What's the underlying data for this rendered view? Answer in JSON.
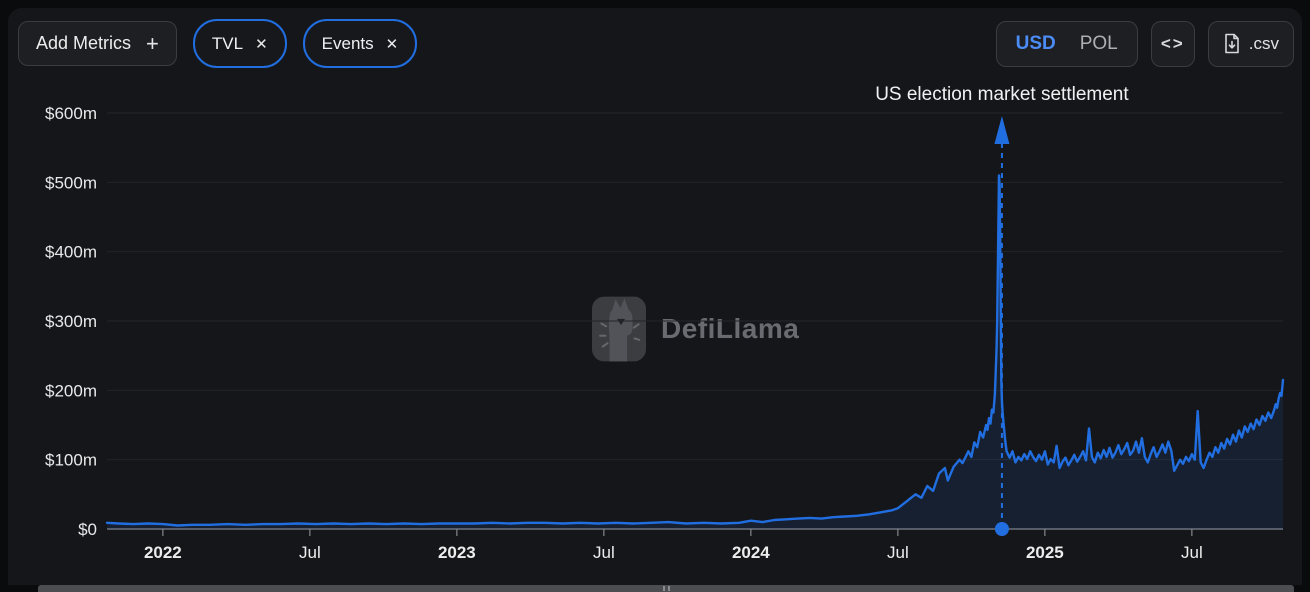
{
  "header": {
    "add_metrics_label": "Add Metrics",
    "add_metrics_plus": "+",
    "metric_pills": [
      {
        "label": "TVL",
        "close": "✕"
      },
      {
        "label": "Events",
        "close": "✕"
      }
    ],
    "currency_toggle": {
      "selected": "USD",
      "options": [
        {
          "label": "USD",
          "active": true
        },
        {
          "label": "POL",
          "active": false
        }
      ]
    },
    "embed_button_label": "<>",
    "csv_button_label": ".csv"
  },
  "watermark": {
    "brand": "DefiLlama"
  },
  "colors": {
    "accent_blue": "#216ee1",
    "usd_active_blue": "#4c8cf5",
    "panel_bg": "#15161a",
    "axis_gray": "#85878b"
  },
  "chart_data": {
    "type": "area",
    "title": "",
    "xlabel": "",
    "ylabel": "",
    "currency": "USD",
    "grid": "horizontal",
    "legend": "none",
    "line_color": "#216ee1",
    "fill_color": "rgba(33,110,225,0.12)",
    "xlim": [
      2021.81,
      2025.81
    ],
    "ylim": [
      0,
      600
    ],
    "y_ticks": [
      {
        "v": 0,
        "label": "$0"
      },
      {
        "v": 100,
        "label": "$100m"
      },
      {
        "v": 200,
        "label": "$200m"
      },
      {
        "v": 300,
        "label": "$300m"
      },
      {
        "v": 400,
        "label": "$400m"
      },
      {
        "v": 500,
        "label": "$500m"
      },
      {
        "v": 600,
        "label": "$600m"
      }
    ],
    "x_ticks": [
      {
        "t": 2022.0,
        "label": "2022",
        "bold": true
      },
      {
        "t": 2022.5,
        "label": "Jul",
        "bold": false
      },
      {
        "t": 2023.0,
        "label": "2023",
        "bold": true
      },
      {
        "t": 2023.5,
        "label": "Jul",
        "bold": false
      },
      {
        "t": 2024.0,
        "label": "2024",
        "bold": true
      },
      {
        "t": 2024.5,
        "label": "Jul",
        "bold": false
      },
      {
        "t": 2025.0,
        "label": "2025",
        "bold": true
      },
      {
        "t": 2025.5,
        "label": "Jul",
        "bold": false
      }
    ],
    "annotation": {
      "label": "US election market settlement",
      "t": 2024.854,
      "peak_value_musd": 510
    },
    "series": [
      {
        "name": "TVL",
        "unit": "USD millions",
        "points": [
          [
            2021.81,
            9
          ],
          [
            2021.85,
            8
          ],
          [
            2021.9,
            7
          ],
          [
            2021.95,
            8
          ],
          [
            2022.0,
            7
          ],
          [
            2022.05,
            5
          ],
          [
            2022.1,
            6
          ],
          [
            2022.16,
            6
          ],
          [
            2022.22,
            7
          ],
          [
            2022.28,
            6
          ],
          [
            2022.34,
            7
          ],
          [
            2022.4,
            7
          ],
          [
            2022.46,
            8
          ],
          [
            2022.52,
            7
          ],
          [
            2022.58,
            8
          ],
          [
            2022.64,
            7
          ],
          [
            2022.7,
            8
          ],
          [
            2022.76,
            7
          ],
          [
            2022.82,
            8
          ],
          [
            2022.88,
            7
          ],
          [
            2022.94,
            8
          ],
          [
            2023.0,
            8
          ],
          [
            2023.06,
            8
          ],
          [
            2023.12,
            9
          ],
          [
            2023.18,
            8
          ],
          [
            2023.24,
            9
          ],
          [
            2023.3,
            9
          ],
          [
            2023.36,
            8
          ],
          [
            2023.42,
            9
          ],
          [
            2023.48,
            8
          ],
          [
            2023.54,
            9
          ],
          [
            2023.6,
            8
          ],
          [
            2023.66,
            9
          ],
          [
            2023.72,
            10
          ],
          [
            2023.78,
            8
          ],
          [
            2023.84,
            9
          ],
          [
            2023.9,
            8
          ],
          [
            2023.96,
            9
          ],
          [
            2024.0,
            12
          ],
          [
            2024.04,
            10
          ],
          [
            2024.08,
            13
          ],
          [
            2024.12,
            14
          ],
          [
            2024.16,
            15
          ],
          [
            2024.2,
            16
          ],
          [
            2024.24,
            15
          ],
          [
            2024.28,
            17
          ],
          [
            2024.32,
            18
          ],
          [
            2024.36,
            19
          ],
          [
            2024.4,
            21
          ],
          [
            2024.44,
            24
          ],
          [
            2024.48,
            27
          ],
          [
            2024.5,
            30
          ],
          [
            2024.53,
            40
          ],
          [
            2024.56,
            50
          ],
          [
            2024.58,
            45
          ],
          [
            2024.6,
            62
          ],
          [
            2024.62,
            55
          ],
          [
            2024.64,
            80
          ],
          [
            2024.66,
            88
          ],
          [
            2024.67,
            70
          ],
          [
            2024.69,
            90
          ],
          [
            2024.71,
            100
          ],
          [
            2024.72,
            95
          ],
          [
            2024.74,
            112
          ],
          [
            2024.75,
            104
          ],
          [
            2024.76,
            125
          ],
          [
            2024.77,
            118
          ],
          [
            2024.78,
            140
          ],
          [
            2024.79,
            132
          ],
          [
            2024.8,
            150
          ],
          [
            2024.805,
            143
          ],
          [
            2024.81,
            160
          ],
          [
            2024.815,
            152
          ],
          [
            2024.82,
            172
          ],
          [
            2024.825,
            168
          ],
          [
            2024.83,
            195
          ],
          [
            2024.833,
            230
          ],
          [
            2024.836,
            262
          ],
          [
            2024.838,
            300
          ],
          [
            2024.84,
            370
          ],
          [
            2024.842,
            440
          ],
          [
            2024.844,
            510
          ],
          [
            2024.846,
            495
          ],
          [
            2024.848,
            420
          ],
          [
            2024.85,
            300
          ],
          [
            2024.852,
            215
          ],
          [
            2024.854,
            185
          ],
          [
            2024.856,
            170
          ],
          [
            2024.86,
            150
          ],
          [
            2024.865,
            128
          ],
          [
            2024.87,
            112
          ],
          [
            2024.88,
            103
          ],
          [
            2024.89,
            112
          ],
          [
            2024.9,
            96
          ],
          [
            2024.91,
            104
          ],
          [
            2024.92,
            99
          ],
          [
            2024.93,
            108
          ],
          [
            2024.94,
            101
          ],
          [
            2024.95,
            112
          ],
          [
            2024.96,
            104
          ],
          [
            2024.97,
            98
          ],
          [
            2024.98,
            107
          ],
          [
            2024.99,
            100
          ],
          [
            2025.0,
            112
          ],
          [
            2025.01,
            93
          ],
          [
            2025.02,
            101
          ],
          [
            2025.03,
            96
          ],
          [
            2025.04,
            120
          ],
          [
            2025.05,
            88
          ],
          [
            2025.06,
            97
          ],
          [
            2025.07,
            103
          ],
          [
            2025.08,
            92
          ],
          [
            2025.09,
            99
          ],
          [
            2025.1,
            107
          ],
          [
            2025.11,
            97
          ],
          [
            2025.12,
            104
          ],
          [
            2025.13,
            112
          ],
          [
            2025.14,
            99
          ],
          [
            2025.15,
            145
          ],
          [
            2025.16,
            104
          ],
          [
            2025.17,
            96
          ],
          [
            2025.18,
            110
          ],
          [
            2025.19,
            102
          ],
          [
            2025.2,
            114
          ],
          [
            2025.21,
            104
          ],
          [
            2025.22,
            117
          ],
          [
            2025.23,
            103
          ],
          [
            2025.24,
            110
          ],
          [
            2025.25,
            121
          ],
          [
            2025.26,
            108
          ],
          [
            2025.27,
            115
          ],
          [
            2025.28,
            124
          ],
          [
            2025.29,
            107
          ],
          [
            2025.3,
            113
          ],
          [
            2025.31,
            126
          ],
          [
            2025.32,
            110
          ],
          [
            2025.33,
            131
          ],
          [
            2025.34,
            104
          ],
          [
            2025.35,
            96
          ],
          [
            2025.36,
            108
          ],
          [
            2025.37,
            118
          ],
          [
            2025.38,
            104
          ],
          [
            2025.39,
            112
          ],
          [
            2025.4,
            122
          ],
          [
            2025.41,
            110
          ],
          [
            2025.42,
            126
          ],
          [
            2025.43,
            113
          ],
          [
            2025.44,
            84
          ],
          [
            2025.45,
            92
          ],
          [
            2025.46,
            100
          ],
          [
            2025.47,
            94
          ],
          [
            2025.48,
            104
          ],
          [
            2025.49,
            98
          ],
          [
            2025.5,
            108
          ],
          [
            2025.51,
            100
          ],
          [
            2025.52,
            170
          ],
          [
            2025.53,
            96
          ],
          [
            2025.54,
            88
          ],
          [
            2025.55,
            100
          ],
          [
            2025.56,
            110
          ],
          [
            2025.57,
            104
          ],
          [
            2025.58,
            118
          ],
          [
            2025.59,
            110
          ],
          [
            2025.6,
            124
          ],
          [
            2025.61,
            116
          ],
          [
            2025.62,
            130
          ],
          [
            2025.63,
            122
          ],
          [
            2025.64,
            136
          ],
          [
            2025.65,
            126
          ],
          [
            2025.66,
            142
          ],
          [
            2025.67,
            132
          ],
          [
            2025.68,
            148
          ],
          [
            2025.69,
            140
          ],
          [
            2025.7,
            152
          ],
          [
            2025.71,
            144
          ],
          [
            2025.72,
            158
          ],
          [
            2025.73,
            150
          ],
          [
            2025.74,
            163
          ],
          [
            2025.75,
            156
          ],
          [
            2025.76,
            168
          ],
          [
            2025.77,
            160
          ],
          [
            2025.78,
            172
          ],
          [
            2025.785,
            180
          ],
          [
            2025.79,
            175
          ],
          [
            2025.795,
            188
          ],
          [
            2025.8,
            196
          ],
          [
            2025.805,
            192
          ],
          [
            2025.81,
            215
          ]
        ]
      }
    ]
  }
}
